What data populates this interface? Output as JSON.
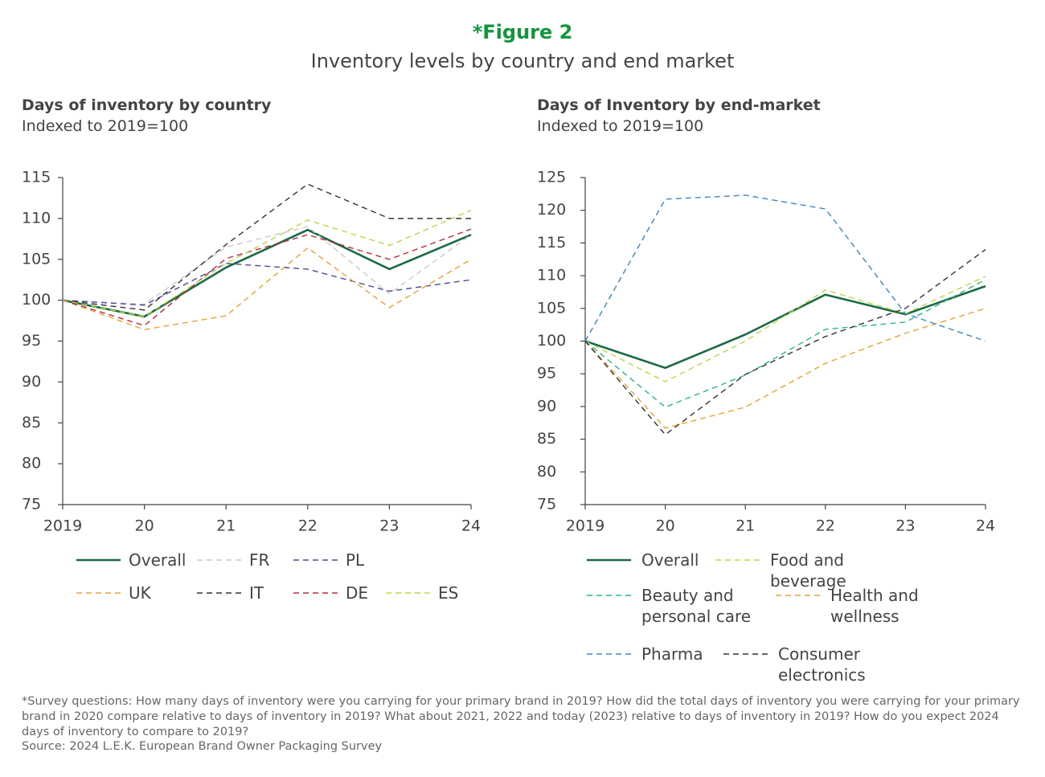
{
  "title": "*Figure 2",
  "subtitle": "Inventory levels by country and end market",
  "chart_data": [
    {
      "type": "line",
      "title": "Days of inventory by country",
      "subtitle": "Indexed to 2019=100",
      "categories": [
        "2019",
        "20",
        "21",
        "22",
        "23",
        "24"
      ],
      "ylim": [
        75,
        115
      ],
      "yticks": [
        75,
        80,
        85,
        90,
        95,
        100,
        105,
        110,
        115
      ],
      "series": [
        {
          "name": "Overall",
          "color": "#1a6b45",
          "values": [
            100,
            98,
            104,
            108.6,
            103.8,
            108
          ]
        },
        {
          "name": "FR",
          "color": "#c8c8d8",
          "values": [
            100,
            99.5,
            106.5,
            109,
            100.8,
            108
          ]
        },
        {
          "name": "PL",
          "color": "#4a4aa0",
          "values": [
            100,
            99.4,
            104.5,
            103.8,
            101.1,
            102.5
          ]
        },
        {
          "name": "UK",
          "color": "#f0a030",
          "values": [
            100,
            96.4,
            98.1,
            106.4,
            99.1,
            105
          ]
        },
        {
          "name": "IT",
          "color": "#333333",
          "values": [
            100,
            98.8,
            106.8,
            114.2,
            110,
            110
          ]
        },
        {
          "name": "DE",
          "color": "#c0283c",
          "values": [
            100,
            96.9,
            105.1,
            108,
            105,
            108.7
          ]
        },
        {
          "name": "ES",
          "color": "#b8d84a",
          "values": [
            100,
            98,
            104.5,
            109.8,
            106.7,
            111
          ]
        }
      ]
    },
    {
      "type": "line",
      "title": "Days of Inventory by end-market",
      "subtitle": "Indexed to 2019=100",
      "categories": [
        "2019",
        "20",
        "21",
        "22",
        "23",
        "24"
      ],
      "ylim": [
        75,
        125
      ],
      "yticks": [
        75,
        80,
        85,
        90,
        95,
        100,
        105,
        110,
        115,
        120,
        125
      ],
      "series": [
        {
          "name": "Overall",
          "color": "#1a6b45",
          "values": [
            100,
            95.9,
            101,
            107.1,
            104.1,
            108.4
          ]
        },
        {
          "name": "Food and beverage",
          "color": "#b8d84a",
          "values": [
            100,
            93.8,
            100,
            107.8,
            104.2,
            109.9
          ]
        },
        {
          "name": "Beauty and personal care",
          "color": "#2ab88a",
          "values": [
            100,
            89.9,
            94.8,
            101.8,
            102.9,
            109.4
          ]
        },
        {
          "name": "Health and wellness",
          "color": "#f0a030",
          "values": [
            100,
            86.7,
            89.9,
            96.6,
            101.2,
            105
          ]
        },
        {
          "name": "Pharma",
          "color": "#3a88c8",
          "values": [
            100,
            121.7,
            122.3,
            120.2,
            104.2,
            100
          ]
        },
        {
          "name": "Consumer electronics",
          "color": "#333333",
          "values": [
            100,
            85.7,
            94.9,
            100.7,
            105,
            114
          ]
        }
      ]
    }
  ],
  "footnote": "*Survey questions: How many days of inventory were you carrying for your primary brand in 2019? How did the total days of inventory you were carrying for your primary brand in 2020 compare relative to days of inventory in 2019? What about 2021, 2022 and today (2023) relative to days of inventory in 2019? How do you expect 2024 days of inventory to compare to 2019?",
  "source": "Source: 2024 L.E.K. European Brand Owner Packaging Survey"
}
